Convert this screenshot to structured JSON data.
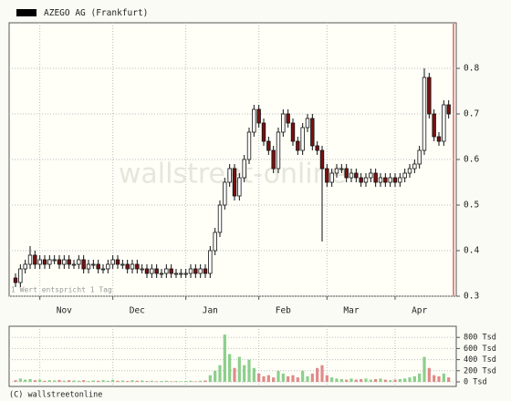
{
  "chart_data": {
    "type": "candlestick",
    "legend": "AZEGO AG (Frankfurt)",
    "watermark": "wallstreet-online",
    "note": "1 Wert entspricht 1 Tag",
    "copyright": "(C) wallstreetonline",
    "categories": [
      null,
      null,
      null,
      null,
      null,
      null,
      null,
      null,
      null,
      null,
      "Nov",
      null,
      null,
      null,
      null,
      null,
      null,
      null,
      null,
      null,
      null,
      null,
      null,
      null,
      null,
      "Dec",
      null,
      null,
      null,
      null,
      null,
      null,
      null,
      null,
      null,
      null,
      null,
      null,
      null,
      null,
      "Jan",
      null,
      null,
      null,
      null,
      null,
      null,
      null,
      null,
      null,
      null,
      null,
      null,
      null,
      null,
      "Feb",
      null,
      null,
      null,
      null,
      null,
      null,
      null,
      null,
      null,
      null,
      null,
      null,
      null,
      "Mar",
      null,
      null,
      null,
      null,
      null,
      null,
      null,
      null,
      null,
      null,
      null,
      null,
      null,
      "Apr",
      null,
      null,
      null,
      null,
      null,
      null
    ],
    "open": [
      0.34,
      0.33,
      0.36,
      0.37,
      0.39,
      0.37,
      0.38,
      0.37,
      0.38,
      0.38,
      0.37,
      0.38,
      0.37,
      0.37,
      0.38,
      0.36,
      0.37,
      0.37,
      0.36,
      0.36,
      0.37,
      0.38,
      0.37,
      0.37,
      0.36,
      0.37,
      0.36,
      0.36,
      0.35,
      0.36,
      0.35,
      0.35,
      0.36,
      0.35,
      0.35,
      0.35,
      0.35,
      0.36,
      0.35,
      0.36,
      0.35,
      0.4,
      0.44,
      0.5,
      0.55,
      0.58,
      0.52,
      0.56,
      0.6,
      0.66,
      0.71,
      0.68,
      0.64,
      0.62,
      0.58,
      0.66,
      0.7,
      0.68,
      0.64,
      0.62,
      0.67,
      0.69,
      0.63,
      0.62,
      0.58,
      0.55,
      0.57,
      0.58,
      0.58,
      0.56,
      0.57,
      0.56,
      0.55,
      0.56,
      0.57,
      0.55,
      0.56,
      0.55,
      0.56,
      0.55,
      0.56,
      0.57,
      0.58,
      0.59,
      0.62,
      0.78,
      0.7,
      0.65,
      0.64,
      0.72
    ],
    "high": [
      0.35,
      0.37,
      0.38,
      0.41,
      0.4,
      0.39,
      0.39,
      0.39,
      0.39,
      0.39,
      0.39,
      0.39,
      0.38,
      0.39,
      0.39,
      0.38,
      0.38,
      0.38,
      0.37,
      0.38,
      0.39,
      0.39,
      0.38,
      0.38,
      0.38,
      0.38,
      0.37,
      0.37,
      0.37,
      0.37,
      0.36,
      0.37,
      0.37,
      0.36,
      0.36,
      0.36,
      0.37,
      0.37,
      0.37,
      0.37,
      0.41,
      0.45,
      0.51,
      0.56,
      0.59,
      0.59,
      0.57,
      0.61,
      0.67,
      0.72,
      0.72,
      0.69,
      0.65,
      0.63,
      0.67,
      0.71,
      0.71,
      0.69,
      0.65,
      0.68,
      0.7,
      0.7,
      0.64,
      0.63,
      0.59,
      0.58,
      0.59,
      0.59,
      0.59,
      0.58,
      0.58,
      0.57,
      0.57,
      0.58,
      0.58,
      0.57,
      0.57,
      0.57,
      0.57,
      0.57,
      0.58,
      0.59,
      0.6,
      0.63,
      0.8,
      0.79,
      0.71,
      0.66,
      0.73,
      0.73
    ],
    "low": [
      0.32,
      0.32,
      0.35,
      0.36,
      0.36,
      0.36,
      0.36,
      0.36,
      0.37,
      0.36,
      0.36,
      0.36,
      0.36,
      0.36,
      0.35,
      0.35,
      0.36,
      0.35,
      0.35,
      0.35,
      0.36,
      0.36,
      0.36,
      0.35,
      0.35,
      0.35,
      0.35,
      0.34,
      0.34,
      0.34,
      0.34,
      0.34,
      0.34,
      0.34,
      0.34,
      0.34,
      0.34,
      0.34,
      0.34,
      0.34,
      0.34,
      0.39,
      0.43,
      0.49,
      0.54,
      0.51,
      0.51,
      0.55,
      0.59,
      0.65,
      0.67,
      0.63,
      0.61,
      0.57,
      0.57,
      0.65,
      0.67,
      0.63,
      0.61,
      0.61,
      0.66,
      0.62,
      0.61,
      0.42,
      0.54,
      0.54,
      0.56,
      0.57,
      0.55,
      0.55,
      0.55,
      0.54,
      0.54,
      0.55,
      0.54,
      0.54,
      0.54,
      0.54,
      0.54,
      0.54,
      0.55,
      0.56,
      0.57,
      0.58,
      0.61,
      0.69,
      0.64,
      0.63,
      0.63,
      0.69
    ],
    "close": [
      0.33,
      0.36,
      0.37,
      0.39,
      0.37,
      0.38,
      0.37,
      0.38,
      0.38,
      0.37,
      0.38,
      0.37,
      0.37,
      0.38,
      0.36,
      0.37,
      0.37,
      0.36,
      0.36,
      0.37,
      0.38,
      0.37,
      0.37,
      0.36,
      0.37,
      0.36,
      0.36,
      0.35,
      0.36,
      0.35,
      0.35,
      0.36,
      0.35,
      0.35,
      0.35,
      0.35,
      0.36,
      0.35,
      0.36,
      0.35,
      0.4,
      0.44,
      0.5,
      0.55,
      0.58,
      0.52,
      0.56,
      0.6,
      0.66,
      0.71,
      0.68,
      0.64,
      0.62,
      0.58,
      0.66,
      0.7,
      0.68,
      0.64,
      0.62,
      0.67,
      0.69,
      0.63,
      0.62,
      0.58,
      0.55,
      0.57,
      0.58,
      0.58,
      0.56,
      0.57,
      0.56,
      0.55,
      0.56,
      0.57,
      0.55,
      0.56,
      0.55,
      0.56,
      0.55,
      0.56,
      0.57,
      0.58,
      0.59,
      0.62,
      0.78,
      0.7,
      0.65,
      0.64,
      0.72,
      0.7
    ],
    "volume": [
      30,
      60,
      40,
      50,
      30,
      40,
      20,
      30,
      25,
      35,
      20,
      30,
      25,
      20,
      30,
      15,
      25,
      20,
      30,
      20,
      35,
      20,
      25,
      15,
      30,
      20,
      25,
      15,
      20,
      10,
      15,
      20,
      10,
      15,
      10,
      15,
      20,
      10,
      20,
      25,
      120,
      200,
      300,
      850,
      500,
      250,
      450,
      300,
      400,
      250,
      150,
      100,
      120,
      80,
      200,
      150,
      100,
      120,
      80,
      200,
      100,
      150,
      250,
      300,
      120,
      80,
      60,
      50,
      40,
      60,
      40,
      50,
      60,
      40,
      50,
      60,
      40,
      30,
      40,
      50,
      60,
      80,
      100,
      150,
      450,
      250,
      120,
      100,
      150,
      80
    ],
    "up_color": "#ffffff",
    "down_color": "#7a1010",
    "volume_up_color": "#8ccf8c",
    "volume_down_color": "#e08a8a",
    "ylim": [
      0.3,
      0.9
    ],
    "yticks": [
      0.3,
      0.4,
      0.5,
      0.6,
      0.7,
      0.8
    ],
    "y2lim": [
      0,
      1000
    ],
    "y2ticks": [
      {
        "value": 0,
        "label": "0 Tsd"
      },
      {
        "value": 200,
        "label": "200 Tsd"
      },
      {
        "value": 400,
        "label": "400 Tsd"
      },
      {
        "value": 600,
        "label": "600 Tsd"
      },
      {
        "value": 800,
        "label": "800 Tsd"
      }
    ],
    "grid": true
  }
}
